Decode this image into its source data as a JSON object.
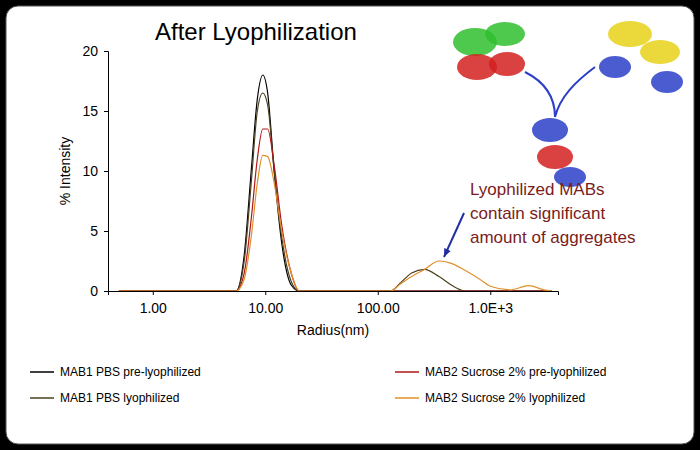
{
  "chart_data": {
    "type": "line",
    "title": "After Lyophilization",
    "x_label": "Radius(nm)",
    "y_label": "% Intensity",
    "annotation": [
      "Lyophilized MABs",
      "contain significant",
      "amount of aggregates"
    ],
    "log": "x",
    "grid": false,
    "legend": "bottom",
    "xlim": [
      0.4,
      4000
    ],
    "ylim": [
      0,
      20
    ],
    "xticks": [
      {
        "value": 1,
        "label": "1.00"
      },
      {
        "value": 10,
        "label": "10.00"
      },
      {
        "value": 100,
        "label": "100.00"
      },
      {
        "value": 1000,
        "label": "1.0E+3"
      }
    ],
    "yticks": [
      0,
      5,
      10,
      15,
      20
    ],
    "x": [
      0.5,
      5.5,
      6.5,
      7.5,
      8.5,
      9.5,
      10.5,
      12,
      14,
      17,
      20,
      130,
      160,
      200,
      260,
      350,
      450,
      600,
      800,
      1000,
      1500,
      2200,
      3000,
      3500
    ],
    "series": [
      {
        "name": "MAB1 PBS pre-lyophilized",
        "color": "#000000",
        "values": [
          0,
          0,
          3,
          10,
          16,
          18,
          16.5,
          10,
          4,
          0.5,
          0,
          0,
          0,
          0,
          0,
          0,
          0,
          0,
          0,
          0,
          0,
          0,
          0,
          0
        ]
      },
      {
        "name": "MAB1 PBS lyophilized",
        "color": "#4d4020",
        "values": [
          0,
          0,
          2.5,
          9,
          15,
          16.5,
          15.5,
          10,
          4.5,
          0.8,
          0,
          0,
          0.7,
          1.5,
          1.8,
          1.2,
          0.5,
          0,
          0,
          0,
          0,
          0,
          0,
          0
        ]
      },
      {
        "name": "MAB2 Sucrose 2% pre-lyophilized",
        "color": "#b01818",
        "values": [
          0,
          0,
          1.5,
          6,
          11,
          13.5,
          13.5,
          10.5,
          5.5,
          1.5,
          0,
          0,
          0,
          0,
          0,
          0,
          0,
          0,
          0,
          0,
          0,
          0,
          0,
          0
        ]
      },
      {
        "name": "MAB2 Sucrose 2% lyophilized",
        "color": "#e0902a",
        "values": [
          0,
          0,
          1,
          4.5,
          9,
          11.3,
          11.2,
          9,
          5,
          1.5,
          0,
          0,
          0.6,
          1.2,
          1.8,
          2.5,
          2.3,
          1.7,
          1,
          0.4,
          0.1,
          0.45,
          0.1,
          0
        ]
      }
    ]
  }
}
